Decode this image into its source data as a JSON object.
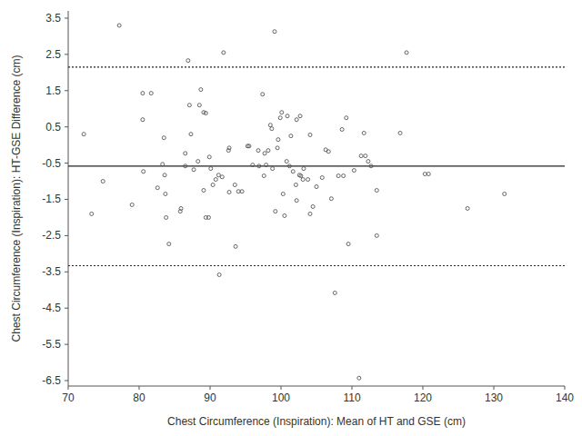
{
  "chart_data": {
    "type": "scatter",
    "x_label": "Chest Circumference (Inspiration): Mean of HT and GSE (cm)",
    "y_label": "Chest Circumference (Inspiration): HT-GSE Difference (cm)",
    "x": [
      72.2,
      73.3,
      74.9,
      77.2,
      79.0,
      80.5,
      80.5,
      80.6,
      81.7,
      82.6,
      83.3,
      83.5,
      83.6,
      83.7,
      83.8,
      84.2,
      85.8,
      85.9,
      86.5,
      86.5,
      86.9,
      87.1,
      87.3,
      87.7,
      88.3,
      88.5,
      88.7,
      89.1,
      89.1,
      89.4,
      89.4,
      89.8,
      89.9,
      90.1,
      90.4,
      90.8,
      91.2,
      91.3,
      91.7,
      91.9,
      92.6,
      92.7,
      92.7,
      93.5,
      93.6,
      94.0,
      94.5,
      95.3,
      95.5,
      96.0,
      96.8,
      96.9,
      97.4,
      97.6,
      97.7,
      97.9,
      98.2,
      98.5,
      98.7,
      98.8,
      99.1,
      99.2,
      99.5,
      99.6,
      99.9,
      100.1,
      100.3,
      100.5,
      100.8,
      100.9,
      101.2,
      101.4,
      101.7,
      102.1,
      102.2,
      102.2,
      102.6,
      102.7,
      102.8,
      103.1,
      103.2,
      103.8,
      104.1,
      104.1,
      104.5,
      105.0,
      105.8,
      106.3,
      106.7,
      107.6,
      107.1,
      108.1,
      108.6,
      108.8,
      109.2,
      109.5,
      110.3,
      111.0,
      111.3,
      111.9,
      111.7,
      112.3,
      112.7,
      113.5,
      113.5,
      116.8,
      117.7,
      120.3,
      120.8,
      126.3,
      131.5
    ],
    "values": [
      0.3,
      -1.9,
      -1.0,
      3.3,
      -1.65,
      0.7,
      1.43,
      -0.73,
      1.43,
      -1.18,
      -0.53,
      0.2,
      -0.83,
      -1.35,
      -2.0,
      -2.73,
      -1.83,
      -1.75,
      -0.23,
      -0.58,
      2.33,
      1.1,
      0.3,
      -0.68,
      -0.45,
      1.1,
      1.53,
      0.9,
      -1.25,
      0.88,
      -2.0,
      -2.0,
      -0.33,
      -0.65,
      -1.1,
      -0.95,
      -0.83,
      -3.58,
      -0.88,
      2.55,
      -0.15,
      -0.08,
      -1.3,
      -1.1,
      -2.8,
      -1.28,
      -1.28,
      -0.03,
      -0.03,
      -0.55,
      -0.15,
      -0.58,
      1.4,
      -0.85,
      -0.23,
      -0.55,
      -0.15,
      0.55,
      0.45,
      -0.65,
      3.13,
      -1.83,
      -0.08,
      0.15,
      0.75,
      0.9,
      -1.35,
      -1.95,
      -0.45,
      0.8,
      -0.58,
      0.25,
      -0.73,
      -1.1,
      0.7,
      -1.53,
      -0.83,
      0.8,
      -0.85,
      -0.95,
      -0.65,
      -0.95,
      -1.9,
      0.28,
      -1.7,
      -1.15,
      -0.9,
      -0.13,
      -0.18,
      -4.08,
      -1.48,
      -0.85,
      0.43,
      -0.85,
      0.75,
      -2.73,
      -0.7,
      -6.43,
      -0.3,
      -0.3,
      0.33,
      -0.45,
      -0.58,
      -1.25,
      -2.5,
      0.33,
      2.55,
      -0.8,
      -0.8,
      -1.75,
      -1.35
    ],
    "color": "#555555",
    "marker": "open-circle",
    "reference_lines": [
      {
        "value": -0.58,
        "line_style": "solid"
      },
      {
        "value": 2.15,
        "line_style": "dotted"
      },
      {
        "value": -3.33,
        "line_style": "dotted"
      }
    ],
    "xlim": [
      70,
      140
    ],
    "xticks": [
      70,
      80,
      90,
      100,
      110,
      120,
      130,
      140
    ],
    "ylim": [
      -6.65,
      3.7
    ],
    "yticks": [
      3.5,
      2.5,
      1.5,
      0.5,
      -0.5,
      -1.5,
      -2.5,
      -3.5,
      -4.5,
      -5.5,
      -6.5
    ],
    "grid": false
  }
}
